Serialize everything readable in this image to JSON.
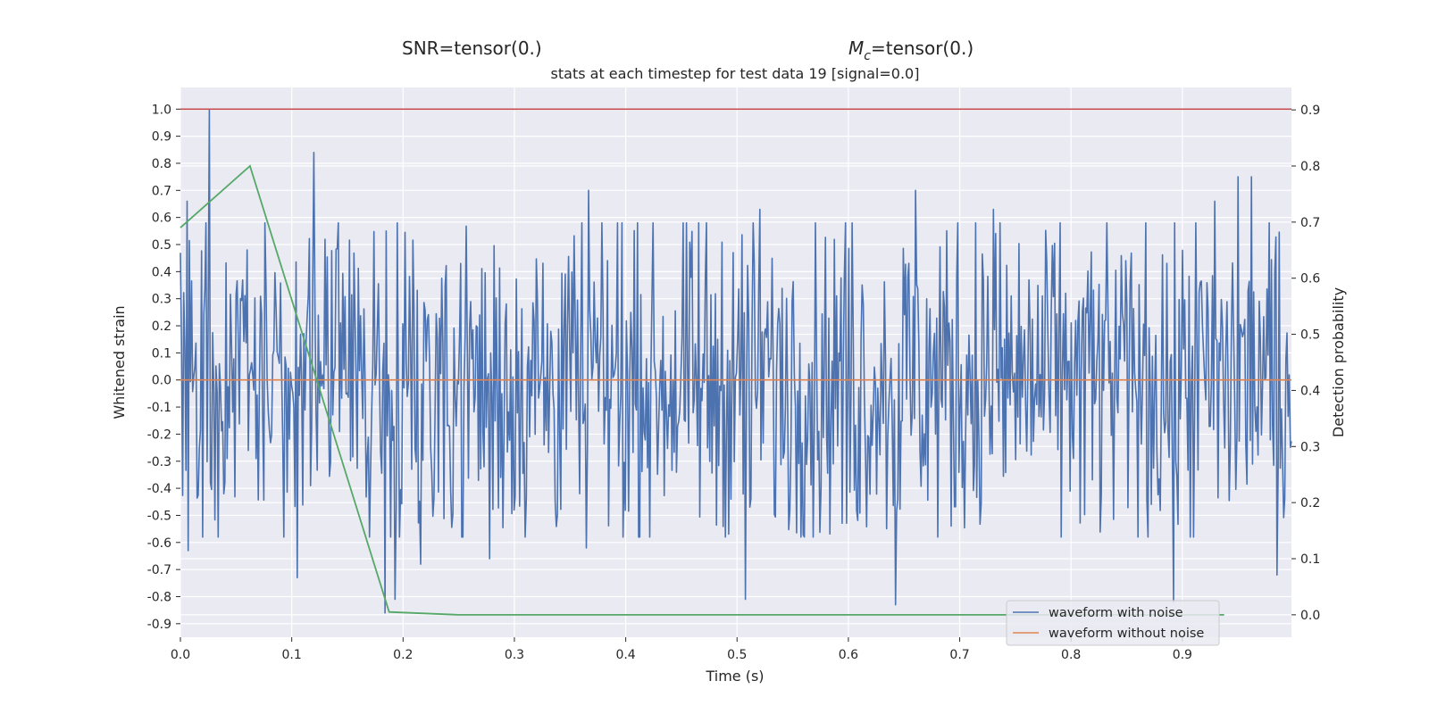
{
  "header": {
    "snr_label": "SNR=tensor(0.)",
    "mc_symbol": "M",
    "mc_subscript": "c",
    "mc_value": "=tensor(0.)",
    "title": "stats at each timestep for test data 19 [signal=0.0]"
  },
  "chart_data": {
    "type": "line",
    "title": "stats at each timestep for test data 19 [signal=0.0]",
    "xlabel": "Time (s)",
    "ylabel_left": "Whitened strain",
    "ylabel_right": "Detection probability",
    "xlim": [
      0.0,
      0.998
    ],
    "ylim_left": [
      -0.95,
      1.08
    ],
    "ylim_right": [
      -0.04,
      0.94
    ],
    "x_ticks": [
      "0.0",
      "0.1",
      "0.2",
      "0.3",
      "0.4",
      "0.5",
      "0.6",
      "0.7",
      "0.8",
      "0.9"
    ],
    "y_ticks_left": [
      "1.0",
      "0.9",
      "0.8",
      "0.7",
      "0.6",
      "0.5",
      "0.4",
      "0.3",
      "0.2",
      "0.1",
      "0.0",
      "-0.1",
      "-0.2",
      "-0.3",
      "-0.4",
      "-0.5",
      "-0.6",
      "-0.7",
      "-0.8",
      "-0.9"
    ],
    "y_ticks_right": [
      "0.9",
      "0.8",
      "0.7",
      "0.6",
      "0.5",
      "0.4",
      "0.3",
      "0.2",
      "0.1",
      "0.0"
    ],
    "grid": true,
    "legend_position": "bottom-right",
    "series": [
      {
        "name": "waveform with noise",
        "axis": "left",
        "color": "#4c72b0",
        "n_points": 1000,
        "amplitude": 0.33,
        "peaks": [
          [
            0.026,
            1.0
          ],
          [
            0.006,
            0.66
          ],
          [
            0.12,
            0.84
          ],
          [
            0.185,
            0.55
          ],
          [
            0.367,
            0.7
          ],
          [
            0.52,
            0.63
          ],
          [
            0.66,
            0.7
          ],
          [
            0.73,
            0.63
          ],
          [
            0.95,
            0.75
          ],
          [
            0.962,
            0.75
          ],
          [
            0.929,
            0.66
          ]
        ],
        "troughs": [
          [
            0.007,
            -0.63
          ],
          [
            0.105,
            -0.73
          ],
          [
            0.184,
            -0.86
          ],
          [
            0.193,
            -0.81
          ],
          [
            0.216,
            -0.68
          ],
          [
            0.278,
            -0.66
          ],
          [
            0.365,
            -0.62
          ],
          [
            0.507,
            -0.81
          ],
          [
            0.642,
            -0.83
          ],
          [
            0.892,
            -0.82
          ],
          [
            0.985,
            -0.72
          ]
        ]
      },
      {
        "name": "waveform without noise",
        "axis": "left",
        "color": "#dd8452",
        "x": [
          0.0,
          0.998
        ],
        "y": [
          0.0,
          0.0
        ]
      },
      {
        "axis": "right",
        "color": "#55a868",
        "x": [
          0.0,
          0.0625,
          0.1875,
          0.25,
          0.3125,
          0.9375
        ],
        "y": [
          0.69,
          0.8,
          0.005,
          0.0,
          0.0,
          0.0
        ]
      },
      {
        "axis": "left",
        "color": "#c44e52",
        "x": [
          0.0,
          0.998
        ],
        "y": [
          1.0,
          1.0
        ]
      }
    ]
  }
}
